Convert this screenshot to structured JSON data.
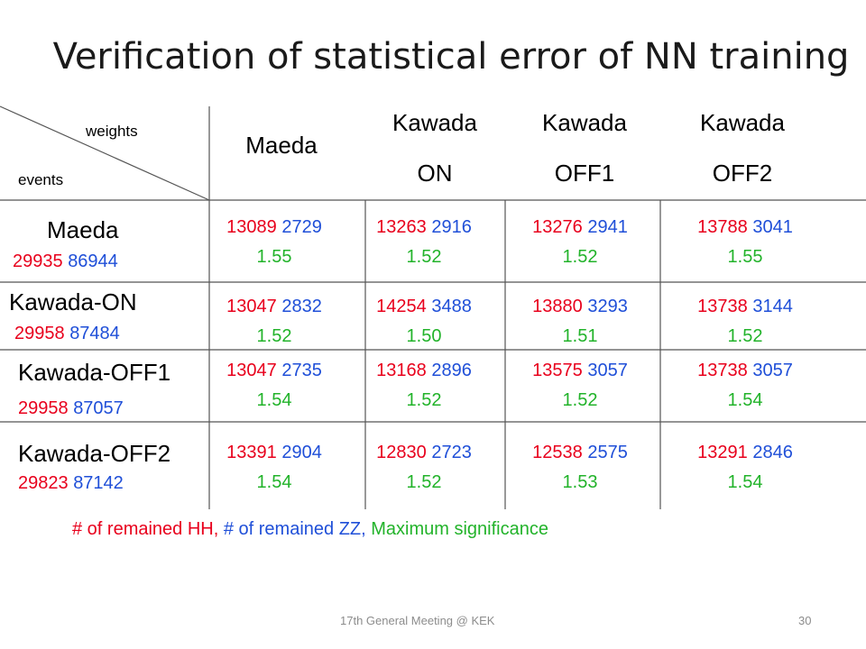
{
  "title": "Verification of statistical error of NN training",
  "corner": {
    "top_label": "weights",
    "bottom_label": "events"
  },
  "columns": [
    {
      "line1": "Maeda",
      "line2": ""
    },
    {
      "line1": "Kawada",
      "line2": "ON"
    },
    {
      "line1": "Kawada",
      "line2": "OFF1"
    },
    {
      "line1": "Kawada",
      "line2": "OFF2"
    }
  ],
  "rows": [
    {
      "label": "Maeda",
      "events_hh": "29935",
      "events_zz": "86944",
      "cells": [
        {
          "hh": "13089",
          "zz": "2729",
          "sig": "1.55"
        },
        {
          "hh": "13263",
          "zz": "2916",
          "sig": "1.52"
        },
        {
          "hh": "13276",
          "zz": "2941",
          "sig": "1.52"
        },
        {
          "hh": "13788",
          "zz": "3041",
          "sig": "1.55"
        }
      ]
    },
    {
      "label": "Kawada-ON",
      "events_hh": "29958",
      "events_zz": "87484",
      "cells": [
        {
          "hh": "13047",
          "zz": "2832",
          "sig": "1.52"
        },
        {
          "hh": "14254",
          "zz": "3488",
          "sig": "1.50"
        },
        {
          "hh": "13880",
          "zz": "3293",
          "sig": "1.51"
        },
        {
          "hh": "13738",
          "zz": "3144",
          "sig": "1.52"
        }
      ]
    },
    {
      "label": "Kawada-OFF1",
      "events_hh": "29958",
      "events_zz": "87057",
      "cells": [
        {
          "hh": "13047",
          "zz": "2735",
          "sig": "1.54"
        },
        {
          "hh": "13168",
          "zz": "2896",
          "sig": "1.52"
        },
        {
          "hh": "13575",
          "zz": "3057",
          "sig": "1.52"
        },
        {
          "hh": "13738",
          "zz": "3057",
          "sig": "1.54"
        }
      ]
    },
    {
      "label": "Kawada-OFF2",
      "events_hh": "29823",
      "events_zz": "87142",
      "cells": [
        {
          "hh": "13391",
          "zz": "2904",
          "sig": "1.54"
        },
        {
          "hh": "12830",
          "zz": "2723",
          "sig": "1.52"
        },
        {
          "hh": "12538",
          "zz": "2575",
          "sig": "1.53"
        },
        {
          "hh": "13291",
          "zz": "2846",
          "sig": "1.54"
        }
      ]
    }
  ],
  "legend": {
    "hh": "# of remained HH,",
    "zz": "# of remained ZZ,",
    "sig": "Maximum significance"
  },
  "footer": {
    "meeting": "17th General Meeting @ KEK",
    "page": "30"
  },
  "colors": {
    "hh": "#e8001c",
    "zz": "#1f4fd8",
    "sig": "#22b32a"
  }
}
